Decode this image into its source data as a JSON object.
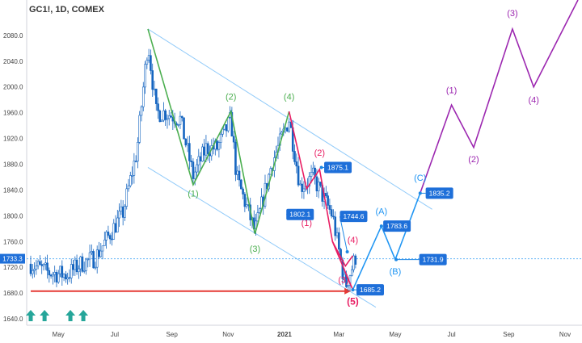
{
  "chart_data": {
    "type": "candlestick",
    "title": "GC1!, 1D, COMEX",
    "y_axis": {
      "min": 1630,
      "max": 2135,
      "ticks": [
        1640,
        1680,
        1720,
        1760,
        1800,
        1840,
        1880,
        1920,
        1960,
        2000,
        2040,
        2080
      ],
      "tick_labels": [
        "1640.0",
        "1680.0",
        "1720.0",
        "1760.0",
        "1800.0",
        "1840.0",
        "1880.0",
        "1920.0",
        "1960.0",
        "2000.0",
        "2040.0",
        "2080.0"
      ],
      "current_price": 1733.3,
      "current_price_label": "1733.3"
    },
    "x_axis": {
      "labels": [
        {
          "text": "May",
          "date": "2020-05-01"
        },
        {
          "text": "Jul",
          "date": "2020-07-01"
        },
        {
          "text": "Sep",
          "date": "2020-09-01"
        },
        {
          "text": "Nov",
          "date": "2020-11-01"
        },
        {
          "text": "2021",
          "date": "2021-01-01"
        },
        {
          "text": "Mar",
          "date": "2021-03-01"
        },
        {
          "text": "May",
          "date": "2021-05-01"
        },
        {
          "text": "Jul",
          "date": "2021-07-01"
        },
        {
          "text": "Sep",
          "date": "2021-09-01"
        },
        {
          "text": "Nov",
          "date": "2021-11-01"
        }
      ],
      "range": [
        "2020-04-01",
        "2021-11-15"
      ]
    },
    "price_path": [
      [
        "2020-04-01",
        1725
      ],
      [
        "2020-04-20",
        1712
      ],
      [
        "2020-05-10",
        1708
      ],
      [
        "2020-05-25",
        1725
      ],
      [
        "2020-06-10",
        1735
      ],
      [
        "2020-06-25",
        1770
      ],
      [
        "2020-07-10",
        1805
      ],
      [
        "2020-07-25",
        1900
      ],
      [
        "2020-08-06",
        2070
      ],
      [
        "2020-08-15",
        1960
      ],
      [
        "2020-08-25",
        1960
      ],
      [
        "2020-09-10",
        1950
      ],
      [
        "2020-09-24",
        1862
      ],
      [
        "2020-10-08",
        1905
      ],
      [
        "2020-10-20",
        1905
      ],
      [
        "2020-11-04",
        1950
      ],
      [
        "2020-11-10",
        1860
      ],
      [
        "2020-11-30",
        1775
      ],
      [
        "2020-12-18",
        1880
      ],
      [
        "2021-01-06",
        1950
      ],
      [
        "2021-01-18",
        1845
      ],
      [
        "2021-02-01",
        1860
      ],
      [
        "2021-02-22",
        1800
      ],
      [
        "2021-03-08",
        1690
      ],
      [
        "2021-03-20",
        1740
      ]
    ],
    "wave_lines": [
      {
        "color": "#4caf50",
        "points": [
          [
            "2020-08-06",
            2090
          ],
          [
            "2020-09-24",
            1848
          ],
          [
            "2020-11-04",
            1962
          ],
          [
            "2020-11-30",
            1772
          ],
          [
            "2021-01-06",
            1962
          ]
        ]
      },
      {
        "color": "#e91e63",
        "points": [
          [
            "2021-01-06",
            1962
          ],
          [
            "2021-01-25",
            1842
          ],
          [
            "2021-02-08",
            1872
          ],
          [
            "2021-02-22",
            1760
          ],
          [
            "2021-03-08",
            1722
          ],
          [
            "2021-03-16",
            1738
          ]
        ]
      },
      {
        "color": "#e91e63",
        "points": [
          [
            "2021-02-22",
            1760
          ],
          [
            "2021-03-16",
            1685
          ]
        ]
      },
      {
        "color": "#2196f3",
        "points": [
          [
            "2021-03-16",
            1685
          ],
          [
            "2021-04-16",
            1784
          ],
          [
            "2021-05-01",
            1732
          ],
          [
            "2021-05-28",
            1835
          ]
        ]
      },
      {
        "color": "#9c27b0",
        "points": [
          [
            "2021-05-28",
            1835
          ],
          [
            "2021-07-01",
            1972
          ],
          [
            "2021-07-25",
            1906
          ],
          [
            "2021-09-05",
            2090
          ],
          [
            "2021-09-28",
            2000
          ],
          [
            "2021-11-15",
            2135
          ]
        ]
      }
    ],
    "channel_lines": [
      {
        "color": "#90caf9",
        "from": [
          "2020-08-06",
          2090
        ],
        "to": [
          "2021-06-10",
          1810
        ]
      },
      {
        "color": "#90caf9",
        "from": [
          "2020-08-06",
          1875
        ],
        "to": [
          "2021-04-10",
          1658
        ]
      }
    ],
    "support_line": {
      "color": "#e53935",
      "from": [
        "2020-04-01",
        1683
      ],
      "to": [
        "2021-03-14",
        1683
      ]
    },
    "wave_labels": [
      {
        "text": "(1)",
        "date": "2020-09-24",
        "price": 1830,
        "color": "#4caf50"
      },
      {
        "text": "(2)",
        "date": "2020-11-04",
        "price": 1980,
        "color": "#4caf50"
      },
      {
        "text": "(3)",
        "date": "2020-11-30",
        "price": 1744,
        "color": "#4caf50"
      },
      {
        "text": "(4)",
        "date": "2021-01-06",
        "price": 1980,
        "color": "#4caf50"
      },
      {
        "text": "(2)",
        "date": "2021-02-08",
        "price": 1893,
        "color": "#e91e63"
      },
      {
        "text": "(1)",
        "date": "2021-01-25",
        "price": 1784,
        "color": "#e91e63"
      },
      {
        "text": "(4)",
        "date": "2021-03-16",
        "price": 1758,
        "color": "#e91e63"
      },
      {
        "text": "(3)",
        "date": "2021-03-06",
        "price": 1696,
        "color": "#e91e63"
      },
      {
        "text": "(5)",
        "date": "2021-03-16",
        "price": 1662,
        "color": "#e91e63",
        "bold": true
      },
      {
        "text": "(A)",
        "date": "2021-04-16",
        "price": 1802,
        "color": "#2196f3"
      },
      {
        "text": "(B)",
        "date": "2021-05-01",
        "price": 1709,
        "color": "#2196f3"
      },
      {
        "text": "(C)",
        "date": "2021-05-28",
        "price": 1854,
        "color": "#2196f3"
      },
      {
        "text": "(1)",
        "date": "2021-07-01",
        "price": 1990,
        "color": "#9c27b0"
      },
      {
        "text": "(2)",
        "date": "2021-07-25",
        "price": 1883,
        "color": "#9c27b0"
      },
      {
        "text": "(3)",
        "date": "2021-09-05",
        "price": 2110,
        "color": "#9c27b0"
      },
      {
        "text": "(4)",
        "date": "2021-09-28",
        "price": 1975,
        "color": "#9c27b0"
      }
    ],
    "price_labels": [
      {
        "text": "1875.1",
        "date": "2021-02-13",
        "price": 1875,
        "pointer": [
          "2021-02-10",
          1875
        ]
      },
      {
        "text": "1802.1",
        "date": "2021-01-03",
        "price": 1802,
        "pointer": [
          "2021-01-21",
          1802
        ]
      },
      {
        "text": "1744.6",
        "date": "2021-03-02",
        "price": 1799,
        "pointer": [
          "2021-03-10",
          1744
        ]
      },
      {
        "text": "1783.6",
        "date": "2021-04-18",
        "price": 1784,
        "pointer": [
          "2021-04-16",
          1784
        ]
      },
      {
        "text": "1731.9",
        "date": "2021-05-27",
        "price": 1732,
        "pointer": [
          "2021-05-02",
          1732
        ]
      },
      {
        "text": "1685.2",
        "date": "2021-03-20",
        "price": 1685,
        "pointer": [
          "2021-03-16",
          1685
        ]
      },
      {
        "text": "1835.2",
        "date": "2021-06-03",
        "price": 1835,
        "pointer": [
          "2021-05-28",
          1835
        ]
      }
    ],
    "arrows": [
      {
        "date": "2020-04-01"
      },
      {
        "date": "2020-04-16"
      },
      {
        "date": "2020-05-14"
      },
      {
        "date": "2020-05-28"
      }
    ]
  }
}
